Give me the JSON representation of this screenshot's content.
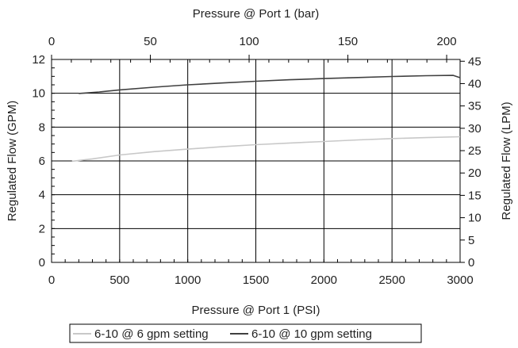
{
  "chart_data": {
    "type": "line",
    "title": "",
    "xlabel": "Pressure @ Port 1 (PSI)",
    "x2label": "Pressure @ Port 1 (bar)",
    "ylabel": "Regulated Flow (GPM)",
    "y2label": "Regulated Flow (LPM)",
    "xlim": [
      0,
      3000
    ],
    "x2lim": [
      0,
      206.8
    ],
    "ylim": [
      0,
      12
    ],
    "y2lim": [
      0,
      45.4
    ],
    "x_ticks": [
      "0",
      "500",
      "1000",
      "1500",
      "2000",
      "2500",
      "3000"
    ],
    "x2_ticks": [
      "0",
      "50",
      "100",
      "150",
      "200"
    ],
    "y_ticks": [
      "0",
      "2",
      "4",
      "6",
      "8",
      "10",
      "12"
    ],
    "y2_ticks": [
      "0",
      "5",
      "10",
      "15",
      "20",
      "25",
      "30",
      "35",
      "40",
      "45"
    ],
    "grid": true,
    "legend_position": "bottom",
    "series": [
      {
        "name": "6-10 @ 6 gpm setting",
        "color": "#c8c8c8",
        "points": [
          [
            150,
            5.98
          ],
          [
            300,
            6.12
          ],
          [
            500,
            6.35
          ],
          [
            750,
            6.55
          ],
          [
            1000,
            6.7
          ],
          [
            1250,
            6.84
          ],
          [
            1500,
            6.96
          ],
          [
            1750,
            7.06
          ],
          [
            2000,
            7.15
          ],
          [
            2250,
            7.24
          ],
          [
            2500,
            7.32
          ],
          [
            2750,
            7.38
          ],
          [
            3000,
            7.43
          ]
        ]
      },
      {
        "name": "6-10 @ 10 gpm setting",
        "color": "#404040",
        "points": [
          [
            200,
            9.99
          ],
          [
            350,
            10.08
          ],
          [
            500,
            10.2
          ],
          [
            750,
            10.36
          ],
          [
            1000,
            10.5
          ],
          [
            1250,
            10.61
          ],
          [
            1500,
            10.71
          ],
          [
            1750,
            10.8
          ],
          [
            2000,
            10.87
          ],
          [
            2250,
            10.93
          ],
          [
            2500,
            10.99
          ],
          [
            2750,
            11.04
          ],
          [
            2950,
            11.06
          ],
          [
            3000,
            10.92
          ]
        ]
      }
    ]
  }
}
